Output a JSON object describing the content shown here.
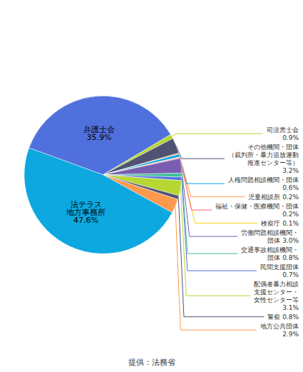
{
  "chart_data": {
    "type": "pie",
    "categories": [
      "弁護士会\n35.9%",
      "司法書士会\n0.9%",
      "その他機関・団体\n（裁判所・暴力追放運動\n推進センター等）\n3.2%",
      "児童相談所 0.2%",
      "人権問題相談機関・団体\n0.6%",
      "検察庁 0.1%",
      "福祉・保健・医療機関・団体\n0.2%",
      "労働問題相談機関・\n団体 3.0%",
      "交通事故相談機関・\n団体 0.8%",
      "民間支援団体\n0.7%",
      "配偶者暴力相談\n支援センター・\n女性センター等\n3.1%",
      "警察 0.8%",
      "地方公共団体\n2.9%",
      "法テラス\n地方事務所\n47.6%"
    ],
    "values": [
      35.9,
      0.9,
      3.2,
      0.2,
      0.6,
      0.1,
      0.2,
      3.0,
      0.8,
      0.7,
      3.1,
      0.8,
      2.9,
      47.6
    ],
    "annotations": [
      "提供：法務省"
    ]
  }
}
